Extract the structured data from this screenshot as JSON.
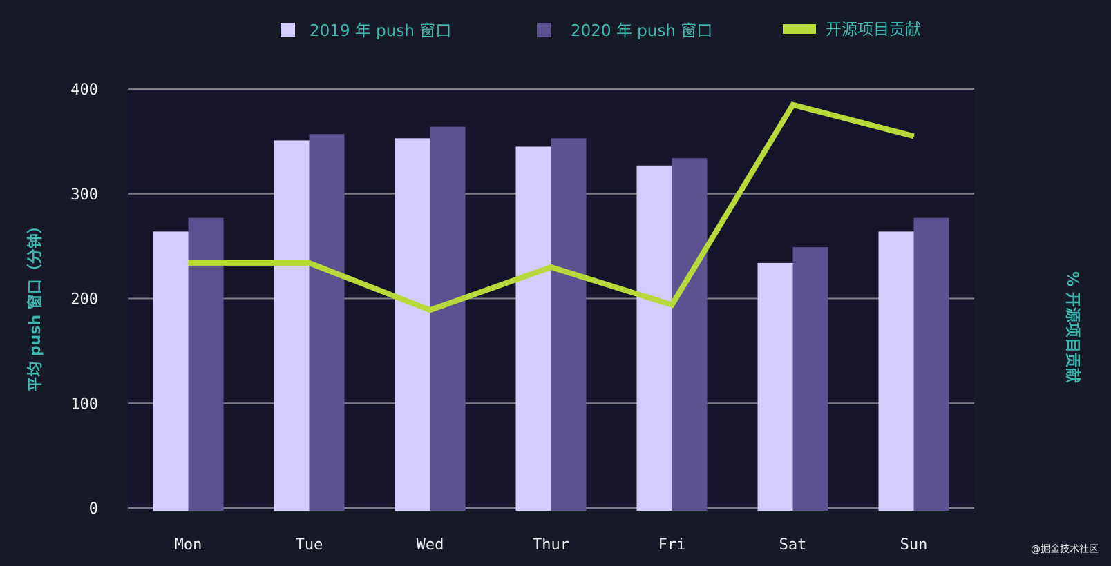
{
  "chart_data": {
    "type": "bar",
    "categories": [
      "Mon",
      "Tue",
      "Wed",
      "Thur",
      "Fri",
      "Sat",
      "Sun"
    ],
    "series": [
      {
        "name": "2019 年 push 窗口",
        "type": "bar",
        "axis": "left",
        "color": "#d4ccfc",
        "values": [
          264,
          351,
          353,
          345,
          327,
          234,
          264
        ]
      },
      {
        "name": "2020 年 push 窗口",
        "type": "bar",
        "axis": "left",
        "color": "#5d5291",
        "values": [
          277,
          357,
          364,
          353,
          334,
          249,
          277
        ]
      },
      {
        "name": "开源项目贡献",
        "type": "line",
        "axis": "right",
        "color": "#b8d93a",
        "values": [
          234,
          234,
          189,
          230,
          194,
          385,
          355
        ]
      }
    ],
    "ylabel": "平均 push 窗口（分钟）",
    "y2label": "% 开源项目贡献",
    "ylim": [
      0,
      400
    ],
    "yticks": [
      "0",
      "100",
      "200",
      "300",
      "400"
    ],
    "grid": true,
    "legend_position": "top-center"
  },
  "watermark": "@掘金技术社区",
  "colors": {
    "background": "#161a26",
    "plot_background": "#15142b",
    "grid": "#7d7d86",
    "axis_title": "#3fb6b0"
  }
}
